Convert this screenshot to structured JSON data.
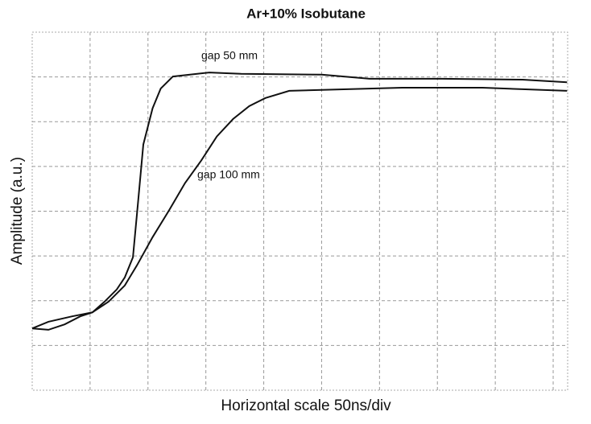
{
  "chart_data": {
    "type": "line",
    "title": "Ar+10% Isobutane",
    "x_label": "Horizontal scale 50ns/div",
    "y_label": "Amplitude (a.u.)",
    "xlim": [
      0,
      9.25
    ],
    "ylim": [
      0,
      8
    ],
    "grid": true,
    "series": [
      {
        "name": "gap 50 mm",
        "color": "#111111",
        "x": [
          0,
          0.28,
          0.56,
          0.83,
          1.04,
          1.25,
          1.46,
          1.6,
          1.74,
          1.83,
          1.92,
          2.08,
          2.22,
          2.43,
          3.06,
          3.61,
          5.0,
          5.83,
          7.08,
          8.47,
          9.24
        ],
        "values": [
          1.38,
          1.35,
          1.47,
          1.65,
          1.74,
          1.98,
          2.25,
          2.52,
          2.97,
          4.23,
          5.49,
          6.3,
          6.74,
          7.01,
          7.1,
          7.07,
          7.05,
          6.96,
          6.96,
          6.94,
          6.88
        ]
      },
      {
        "name": "gap 100 mm",
        "color": "#111111",
        "x": [
          0,
          0.28,
          0.69,
          1.04,
          1.32,
          1.6,
          1.81,
          2.08,
          2.36,
          2.64,
          2.92,
          3.19,
          3.47,
          3.75,
          4.03,
          4.44,
          5.0,
          6.39,
          7.78,
          9.24
        ],
        "values": [
          1.38,
          1.53,
          1.65,
          1.74,
          1.98,
          2.34,
          2.79,
          3.42,
          4.01,
          4.63,
          5.13,
          5.67,
          6.06,
          6.35,
          6.53,
          6.69,
          6.71,
          6.76,
          6.76,
          6.69
        ]
      }
    ]
  }
}
